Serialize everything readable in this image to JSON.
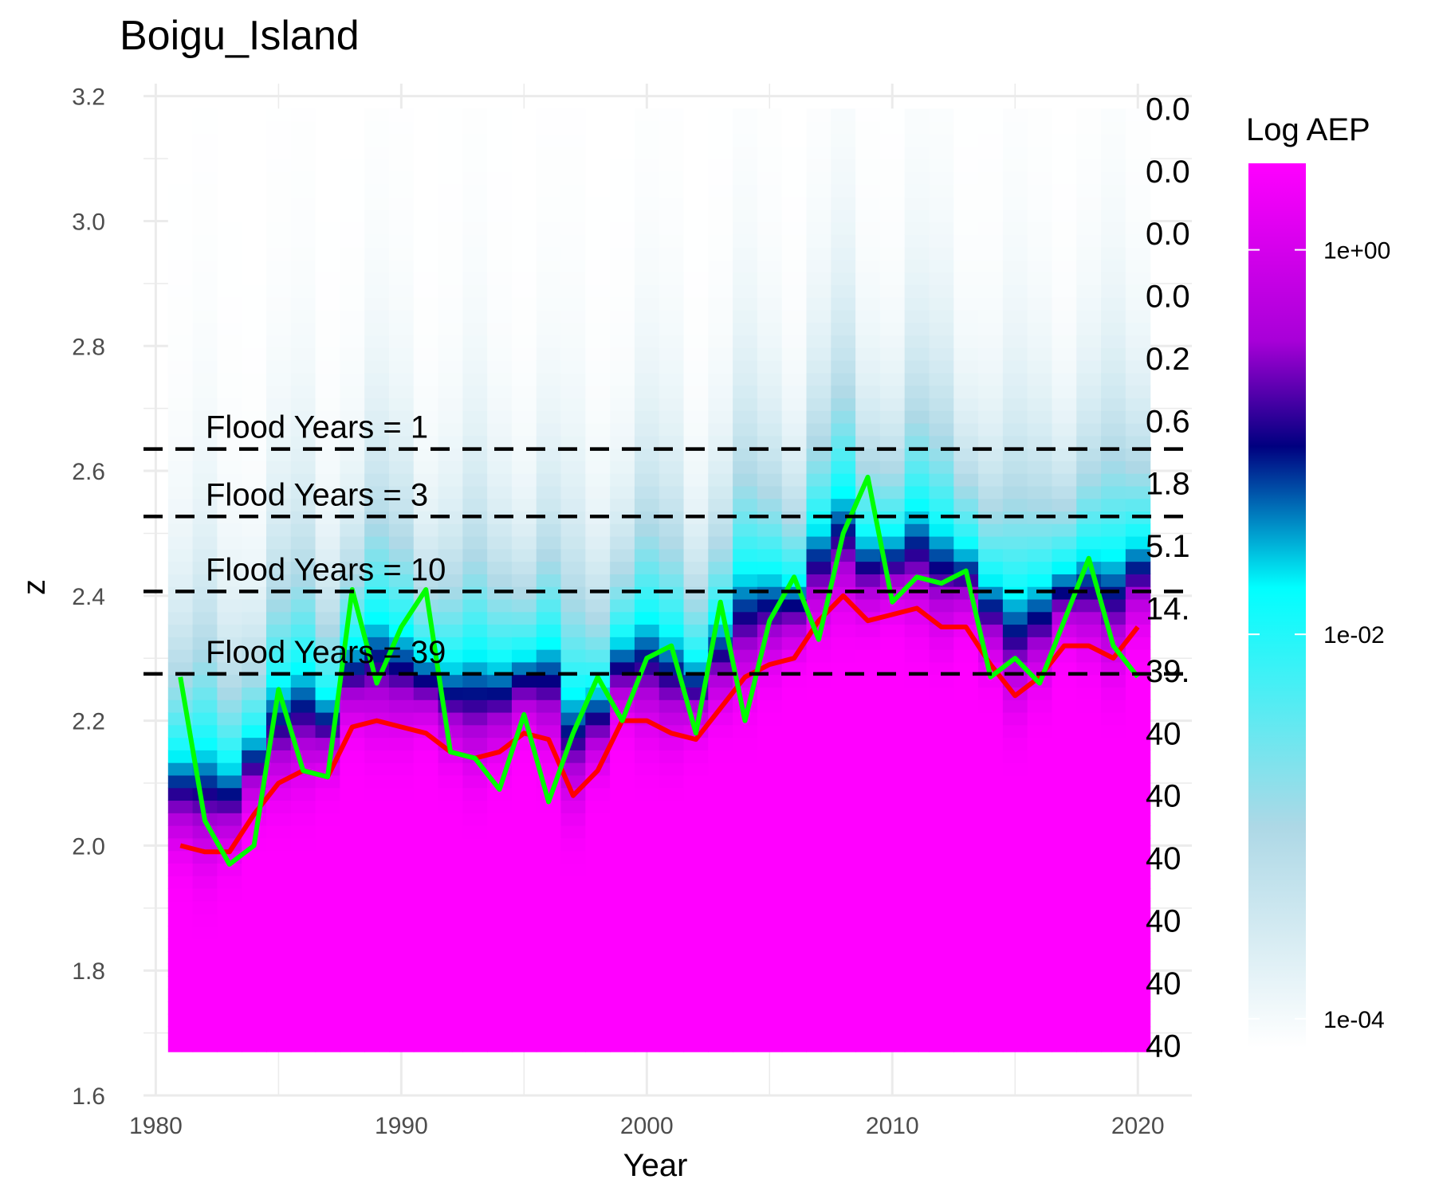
{
  "colors": {
    "ramp": [
      "#ffffff",
      "#add8e6",
      "#00ffff",
      "#000080",
      "#a800d8",
      "#ff00ff"
    ],
    "mean_line": "#ff0000",
    "annual_max_line": "#00ff00",
    "threshold_line": "#000000",
    "grid": "#ebebeb"
  },
  "chart_data": {
    "type": "heatmap",
    "title": "Boigu_Island",
    "xlabel": "Year",
    "ylabel": "z",
    "xlim": [
      1979.5,
      2022.2
    ],
    "ylim": [
      1.6,
      3.22
    ],
    "x_ticks": [
      1980,
      1990,
      2000,
      2010,
      2020
    ],
    "y_ticks": [
      1.6,
      1.8,
      2.0,
      2.2,
      2.4,
      2.6,
      2.8,
      3.0,
      3.2
    ],
    "grid": true,
    "heatmap": {
      "years": [
        1981,
        1982,
        1983,
        1984,
        1985,
        1986,
        1987,
        1988,
        1989,
        1990,
        1991,
        1992,
        1993,
        1994,
        1995,
        1996,
        1997,
        1998,
        1999,
        2000,
        2001,
        2002,
        2003,
        2004,
        2005,
        2006,
        2007,
        2008,
        2009,
        2010,
        2011,
        2012,
        2013,
        2014,
        2015,
        2016,
        2017,
        2018,
        2019,
        2020
      ],
      "z_range": [
        1.67,
        3.18
      ],
      "fill_scale": "log10",
      "fill_label": "Log AEP"
    },
    "series": [
      {
        "x": [
          1981,
          1982,
          1983,
          1984,
          1985,
          1986,
          1987,
          1988,
          1989,
          1990,
          1991,
          1992,
          1993,
          1994,
          1995,
          1996,
          1997,
          1998,
          1999,
          2000,
          2001,
          2002,
          2003,
          2004,
          2005,
          2006,
          2007,
          2008,
          2009,
          2010,
          2011,
          2012,
          2013,
          2014,
          2015,
          2016,
          2017,
          2018,
          2019,
          2020
        ],
        "values": [
          2.0,
          1.99,
          1.99,
          2.05,
          2.1,
          2.12,
          2.11,
          2.19,
          2.2,
          2.19,
          2.18,
          2.15,
          2.14,
          2.15,
          2.18,
          2.17,
          2.08,
          2.12,
          2.2,
          2.2,
          2.18,
          2.17,
          2.22,
          2.27,
          2.29,
          2.3,
          2.36,
          2.4,
          2.36,
          2.37,
          2.38,
          2.35,
          2.35,
          2.29,
          2.24,
          2.27,
          2.32,
          2.32,
          2.3,
          2.35
        ]
      },
      {
        "x": [
          1981,
          1982,
          1983,
          1984,
          1985,
          1986,
          1987,
          1988,
          1989,
          1990,
          1991,
          1992,
          1993,
          1994,
          1995,
          1996,
          1997,
          1998,
          1999,
          2000,
          2001,
          2002,
          2003,
          2004,
          2005,
          2006,
          2007,
          2008,
          2009,
          2010,
          2011,
          2012,
          2013,
          2014,
          2015,
          2016,
          2017,
          2018,
          2019,
          2020
        ],
        "values": [
          2.27,
          2.04,
          1.97,
          2.0,
          2.25,
          2.12,
          2.11,
          2.41,
          2.26,
          2.35,
          2.41,
          2.15,
          2.14,
          2.09,
          2.21,
          2.07,
          2.18,
          2.27,
          2.2,
          2.3,
          2.32,
          2.18,
          2.39,
          2.2,
          2.36,
          2.43,
          2.33,
          2.5,
          2.59,
          2.39,
          2.43,
          2.42,
          2.44,
          2.27,
          2.3,
          2.26,
          2.36,
          2.46,
          2.32,
          2.27
        ]
      }
    ],
    "thresholds": [
      {
        "z": 2.635,
        "label": "Flood Years = 1"
      },
      {
        "z": 2.527,
        "label": "Flood Years = 3"
      },
      {
        "z": 2.407,
        "label": "Flood Years = 10"
      },
      {
        "z": 2.275,
        "label": "Flood Years = 39"
      }
    ],
    "right_labels": [
      {
        "z": 3.18,
        "text": "0.0"
      },
      {
        "z": 3.08,
        "text": "0.0"
      },
      {
        "z": 2.98,
        "text": "0.0"
      },
      {
        "z": 2.88,
        "text": "0.0"
      },
      {
        "z": 2.78,
        "text": "0.2"
      },
      {
        "z": 2.68,
        "text": "0.6"
      },
      {
        "z": 2.58,
        "text": "1.8"
      },
      {
        "z": 2.48,
        "text": "5.1"
      },
      {
        "z": 2.38,
        "text": "14."
      },
      {
        "z": 2.28,
        "text": "39."
      },
      {
        "z": 2.18,
        "text": "40"
      },
      {
        "z": 2.08,
        "text": "40"
      },
      {
        "z": 1.98,
        "text": "40"
      },
      {
        "z": 1.88,
        "text": "40"
      },
      {
        "z": 1.78,
        "text": "40"
      },
      {
        "z": 1.68,
        "text": "40"
      }
    ],
    "legend": {
      "title": "Log AEP",
      "placement": "right",
      "range_log10": [
        -4.15,
        0.45
      ],
      "ticks": [
        {
          "value": 1,
          "label": "1e+00"
        },
        {
          "value": 0.01,
          "label": "1e-02"
        },
        {
          "value": 0.0001,
          "label": "1e-04"
        }
      ]
    }
  }
}
